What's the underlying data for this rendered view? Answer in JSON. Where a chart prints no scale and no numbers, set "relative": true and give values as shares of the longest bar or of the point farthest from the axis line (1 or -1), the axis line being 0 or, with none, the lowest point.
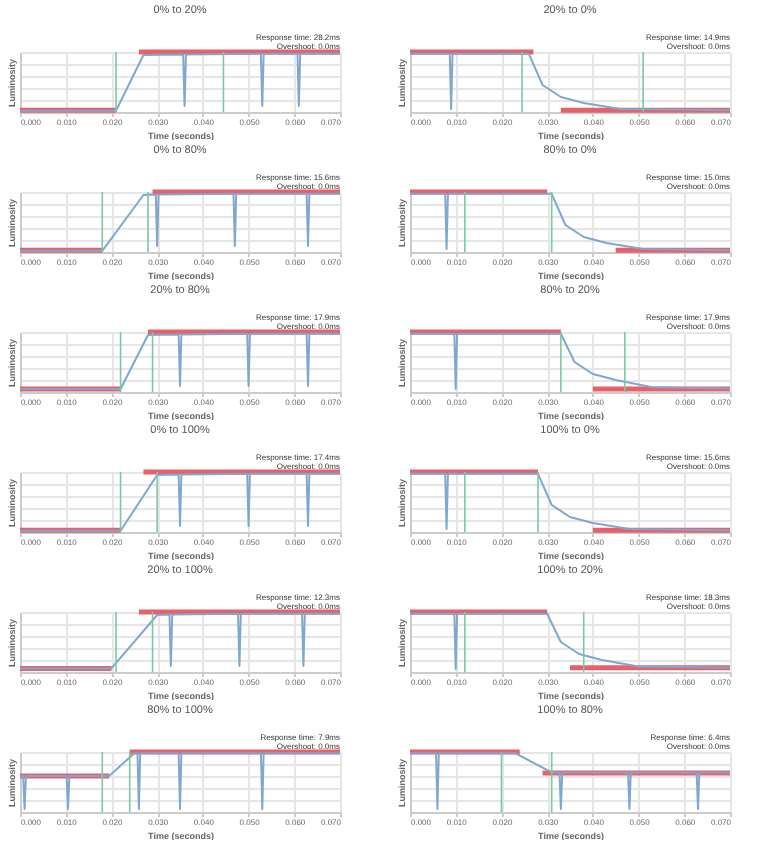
{
  "chart_data": [
    {
      "type": "line",
      "title": "0% to 20%",
      "xlabel": "Time (seconds)",
      "ylabel": "Luminosity",
      "annotations": [
        "Response time: 28.2ms",
        "Overshoot: 0.0ms"
      ],
      "relative": true,
      "grid": true,
      "xlim": [
        0,
        0.07
      ],
      "xticks": [
        {
          "value": 0,
          "label": "0.000"
        },
        {
          "value": 0.01,
          "label": "0.010"
        },
        {
          "value": 0.02,
          "label": "0.020"
        },
        {
          "value": 0.03,
          "label": "0.030"
        },
        {
          "value": 0.04,
          "label": "0.040"
        },
        {
          "value": 0.05,
          "label": "0.050"
        },
        {
          "value": 0.06,
          "label": "0.060"
        },
        {
          "value": 0.07,
          "label": "0.070"
        }
      ],
      "ref_lines": [
        {
          "axis": "x",
          "value": 0.021,
          "color": "#7cc8a0"
        },
        {
          "axis": "x",
          "value": 0.0445,
          "color": "#7cc8a0"
        }
      ],
      "series": [
        {
          "color": "#7fa7cf",
          "x": [
            0,
            0.021,
            0.027,
            0.0357,
            0.036,
            0.0363,
            0.0527,
            0.053,
            0.0533,
            0.0607,
            0.061,
            0.0613,
            0.07
          ],
          "values": [
            0.02,
            0.02,
            0.95,
            0.96,
            0.1,
            0.96,
            0.97,
            0.1,
            0.97,
            0.97,
            0.1,
            0.97,
            0.97
          ]
        },
        {
          "color": "#e8606a",
          "x": [
            0,
            0.021
          ],
          "values": [
            0.03,
            0.03
          ]
        },
        {
          "color": "#e8606a",
          "x": [
            0.026,
            0.07
          ],
          "values": [
            1,
            1
          ]
        }
      ]
    },
    {
      "type": "line",
      "title": "20% to 0%",
      "xlabel": "Time (seconds)",
      "ylabel": "Luminosity",
      "annotations": [
        "Response time: 14.9ms",
        "Overshoot: 0.0ms"
      ],
      "relative": true,
      "grid": true,
      "xlim": [
        0,
        0.07
      ],
      "xticks": [
        {
          "value": 0,
          "label": "0.000"
        },
        {
          "value": 0.01,
          "label": "0.010"
        },
        {
          "value": 0.02,
          "label": "0.020"
        },
        {
          "value": 0.03,
          "label": "0.030"
        },
        {
          "value": 0.04,
          "label": "0.040"
        },
        {
          "value": 0.05,
          "label": "0.050"
        },
        {
          "value": 0.06,
          "label": "0.060"
        },
        {
          "value": 0.07,
          "label": "0.070"
        }
      ],
      "ref_lines": [
        {
          "axis": "x",
          "value": 0.0245,
          "color": "#7cc8a0"
        },
        {
          "axis": "x",
          "value": 0.051,
          "color": "#7cc8a0"
        }
      ],
      "series": [
        {
          "color": "#7fa7cf",
          "x": [
            0,
            0.0087,
            0.009,
            0.0093,
            0.026,
            0.029,
            0.033,
            0.038,
            0.046,
            0.07
          ],
          "values": [
            0.97,
            0.97,
            0.05,
            0.97,
            0.97,
            0.45,
            0.25,
            0.15,
            0.05,
            0.03
          ]
        },
        {
          "color": "#e8606a",
          "x": [
            0,
            0.027
          ],
          "values": [
            1,
            1
          ]
        },
        {
          "color": "#e8606a",
          "x": [
            0.033,
            0.07
          ],
          "values": [
            0.03,
            0.03
          ]
        }
      ]
    },
    {
      "type": "line",
      "title": "0% to 80%",
      "xlabel": "Time (seconds)",
      "ylabel": "Luminosity",
      "annotations": [
        "Response time: 15.6ms",
        "Overshoot: 0.0ms"
      ],
      "relative": true,
      "grid": true,
      "xlim": [
        0,
        0.07
      ],
      "xticks": [
        {
          "value": 0,
          "label": "0.000"
        },
        {
          "value": 0.01,
          "label": "0.010"
        },
        {
          "value": 0.02,
          "label": "0.020"
        },
        {
          "value": 0.03,
          "label": "0.030"
        },
        {
          "value": 0.04,
          "label": "0.040"
        },
        {
          "value": 0.05,
          "label": "0.050"
        },
        {
          "value": 0.06,
          "label": "0.060"
        },
        {
          "value": 0.07,
          "label": "0.070"
        }
      ],
      "ref_lines": [
        {
          "axis": "x",
          "value": 0.018,
          "color": "#7cc8a0"
        },
        {
          "axis": "x",
          "value": 0.028,
          "color": "#7cc8a0"
        }
      ],
      "series": [
        {
          "color": "#7fa7cf",
          "x": [
            0,
            0.018,
            0.027,
            0.0297,
            0.03,
            0.0303,
            0.0467,
            0.047,
            0.0473,
            0.0627,
            0.063,
            0.0633,
            0.07
          ],
          "values": [
            0.02,
            0.02,
            0.95,
            0.96,
            0.1,
            0.96,
            0.97,
            0.1,
            0.97,
            0.97,
            0.1,
            0.97,
            0.97
          ]
        },
        {
          "color": "#e8606a",
          "x": [
            0,
            0.018
          ],
          "values": [
            0.03,
            0.03
          ]
        },
        {
          "color": "#e8606a",
          "x": [
            0.029,
            0.07
          ],
          "values": [
            1,
            1
          ]
        }
      ]
    },
    {
      "type": "line",
      "title": "80% to 0%",
      "xlabel": "Time (seconds)",
      "ylabel": "Luminosity",
      "annotations": [
        "Response time: 15.0ms",
        "Overshoot: 0.0ms"
      ],
      "relative": true,
      "grid": true,
      "xlim": [
        0,
        0.07
      ],
      "xticks": [
        {
          "value": 0,
          "label": "0.000"
        },
        {
          "value": 0.01,
          "label": "0.010"
        },
        {
          "value": 0.02,
          "label": "0.020"
        },
        {
          "value": 0.03,
          "label": "0.030"
        },
        {
          "value": 0.04,
          "label": "0.040"
        },
        {
          "value": 0.05,
          "label": "0.050"
        },
        {
          "value": 0.06,
          "label": "0.060"
        },
        {
          "value": 0.07,
          "label": "0.070"
        }
      ],
      "ref_lines": [
        {
          "axis": "x",
          "value": 0.012,
          "color": "#7cc8a0"
        },
        {
          "axis": "x",
          "value": 0.031,
          "color": "#7cc8a0"
        }
      ],
      "series": [
        {
          "color": "#7fa7cf",
          "x": [
            0,
            0.0077,
            0.008,
            0.0083,
            0.031,
            0.034,
            0.038,
            0.043,
            0.051,
            0.07
          ],
          "values": [
            0.97,
            0.97,
            0.05,
            0.97,
            0.97,
            0.45,
            0.25,
            0.15,
            0.05,
            0.03
          ]
        },
        {
          "color": "#e8606a",
          "x": [
            0,
            0.03
          ],
          "values": [
            1,
            1
          ]
        },
        {
          "color": "#e8606a",
          "x": [
            0.045,
            0.07
          ],
          "values": [
            0.03,
            0.03
          ]
        }
      ]
    },
    {
      "type": "line",
      "title": "20% to 80%",
      "xlabel": "Time (seconds)",
      "ylabel": "Luminosity",
      "annotations": [
        "Response time: 17.9ms",
        "Overshoot: 0.0ms"
      ],
      "relative": true,
      "grid": true,
      "xlim": [
        0,
        0.07
      ],
      "xticks": [
        {
          "value": 0,
          "label": "0.000"
        },
        {
          "value": 0.01,
          "label": "0.010"
        },
        {
          "value": 0.02,
          "label": "0.020"
        },
        {
          "value": 0.03,
          "label": "0.030"
        },
        {
          "value": 0.04,
          "label": "0.040"
        },
        {
          "value": 0.05,
          "label": "0.050"
        },
        {
          "value": 0.06,
          "label": "0.060"
        },
        {
          "value": 0.07,
          "label": "0.070"
        }
      ],
      "ref_lines": [
        {
          "axis": "x",
          "value": 0.022,
          "color": "#7cc8a0"
        },
        {
          "axis": "x",
          "value": 0.029,
          "color": "#7cc8a0"
        }
      ],
      "series": [
        {
          "color": "#7fa7cf",
          "x": [
            0,
            0.022,
            0.028,
            0.0347,
            0.035,
            0.0353,
            0.0497,
            0.05,
            0.0503,
            0.0627,
            0.063,
            0.0633,
            0.07
          ],
          "values": [
            0.05,
            0.05,
            0.95,
            0.96,
            0.1,
            0.96,
            0.97,
            0.1,
            0.97,
            0.97,
            0.1,
            0.97,
            0.97
          ]
        },
        {
          "color": "#e8606a",
          "x": [
            0,
            0.022
          ],
          "values": [
            0.05,
            0.05
          ]
        },
        {
          "color": "#e8606a",
          "x": [
            0.028,
            0.07
          ],
          "values": [
            1,
            1
          ]
        }
      ]
    },
    {
      "type": "line",
      "title": "80% to 20%",
      "xlabel": "Time (seconds)",
      "ylabel": "Luminosity",
      "annotations": [
        "Response time: 17.9ms",
        "Overshoot: 0.0ms"
      ],
      "relative": true,
      "grid": true,
      "xlim": [
        0,
        0.07
      ],
      "xticks": [
        {
          "value": 0,
          "label": "0.000"
        },
        {
          "value": 0.01,
          "label": "0.010"
        },
        {
          "value": 0.02,
          "label": "0.020"
        },
        {
          "value": 0.03,
          "label": "0.030"
        },
        {
          "value": 0.04,
          "label": "0.040"
        },
        {
          "value": 0.05,
          "label": "0.050"
        },
        {
          "value": 0.06,
          "label": "0.060"
        },
        {
          "value": 0.07,
          "label": "0.070"
        }
      ],
      "ref_lines": [
        {
          "axis": "x",
          "value": 0.033,
          "color": "#7cc8a0"
        },
        {
          "axis": "x",
          "value": 0.047,
          "color": "#7cc8a0"
        }
      ],
      "series": [
        {
          "color": "#7fa7cf",
          "x": [
            0,
            0.0097,
            0.01,
            0.0103,
            0.033,
            0.036,
            0.04,
            0.045,
            0.053,
            0.07
          ],
          "values": [
            0.97,
            0.97,
            0.05,
            0.97,
            0.97,
            0.5,
            0.3,
            0.2,
            0.08,
            0.06
          ]
        },
        {
          "color": "#e8606a",
          "x": [
            0,
            0.033
          ],
          "values": [
            1,
            1
          ]
        },
        {
          "color": "#e8606a",
          "x": [
            0.04,
            0.07
          ],
          "values": [
            0.05,
            0.05
          ]
        }
      ]
    },
    {
      "type": "line",
      "title": "0% to 100%",
      "xlabel": "Time (seconds)",
      "ylabel": "Luminosity",
      "annotations": [
        "Response time: 17.4ms",
        "Overshoot: 0.0ms"
      ],
      "relative": true,
      "grid": true,
      "xlim": [
        0,
        0.07
      ],
      "xticks": [
        {
          "value": 0,
          "label": "0.000"
        },
        {
          "value": 0.01,
          "label": "0.010"
        },
        {
          "value": 0.02,
          "label": "0.020"
        },
        {
          "value": 0.03,
          "label": "0.030"
        },
        {
          "value": 0.04,
          "label": "0.040"
        },
        {
          "value": 0.05,
          "label": "0.050"
        },
        {
          "value": 0.06,
          "label": "0.060"
        },
        {
          "value": 0.07,
          "label": "0.070"
        }
      ],
      "ref_lines": [
        {
          "axis": "x",
          "value": 0.022,
          "color": "#7cc8a0"
        },
        {
          "axis": "x",
          "value": 0.03,
          "color": "#7cc8a0"
        }
      ],
      "series": [
        {
          "color": "#7fa7cf",
          "x": [
            0,
            0.022,
            0.03,
            0.0347,
            0.035,
            0.0353,
            0.0497,
            0.05,
            0.0503,
            0.0627,
            0.063,
            0.0633,
            0.07
          ],
          "values": [
            0.02,
            0.02,
            0.95,
            0.96,
            0.1,
            0.96,
            0.97,
            0.1,
            0.97,
            0.97,
            0.1,
            0.97,
            0.97
          ]
        },
        {
          "color": "#e8606a",
          "x": [
            0,
            0.022
          ],
          "values": [
            0.03,
            0.03
          ]
        },
        {
          "color": "#e8606a",
          "x": [
            0.027,
            0.07
          ],
          "values": [
            1,
            1
          ]
        }
      ]
    },
    {
      "type": "line",
      "title": "100% to 0%",
      "xlabel": "Time (seconds)",
      "ylabel": "Luminosity",
      "annotations": [
        "Response time: 15.6ms",
        "Overshoot: 0.0ms"
      ],
      "relative": true,
      "grid": true,
      "xlim": [
        0,
        0.07
      ],
      "xticks": [
        {
          "value": 0,
          "label": "0.000"
        },
        {
          "value": 0.01,
          "label": "0.010"
        },
        {
          "value": 0.02,
          "label": "0.020"
        },
        {
          "value": 0.03,
          "label": "0.030"
        },
        {
          "value": 0.04,
          "label": "0.040"
        },
        {
          "value": 0.05,
          "label": "0.050"
        },
        {
          "value": 0.06,
          "label": "0.060"
        },
        {
          "value": 0.07,
          "label": "0.070"
        }
      ],
      "ref_lines": [
        {
          "axis": "x",
          "value": 0.012,
          "color": "#7cc8a0"
        },
        {
          "axis": "x",
          "value": 0.028,
          "color": "#7cc8a0"
        }
      ],
      "series": [
        {
          "color": "#7fa7cf",
          "x": [
            0,
            0.0077,
            0.008,
            0.0083,
            0.028,
            0.031,
            0.035,
            0.04,
            0.048,
            0.07
          ],
          "values": [
            0.97,
            0.97,
            0.05,
            0.97,
            0.97,
            0.45,
            0.25,
            0.15,
            0.05,
            0.03
          ]
        },
        {
          "color": "#e8606a",
          "x": [
            0,
            0.028
          ],
          "values": [
            1,
            1
          ]
        },
        {
          "color": "#e8606a",
          "x": [
            0.04,
            0.07
          ],
          "values": [
            0.03,
            0.03
          ]
        }
      ]
    },
    {
      "type": "line",
      "title": "20% to 100%",
      "xlabel": "Time (seconds)",
      "ylabel": "Luminosity",
      "annotations": [
        "Response time: 12.3ms",
        "Overshoot: 0.0ms"
      ],
      "relative": true,
      "grid": true,
      "xlim": [
        0,
        0.07
      ],
      "xticks": [
        {
          "value": 0,
          "label": "0.000"
        },
        {
          "value": 0.01,
          "label": "0.010"
        },
        {
          "value": 0.02,
          "label": "0.020"
        },
        {
          "value": 0.03,
          "label": "0.030"
        },
        {
          "value": 0.04,
          "label": "0.040"
        },
        {
          "value": 0.05,
          "label": "0.050"
        },
        {
          "value": 0.06,
          "label": "0.060"
        },
        {
          "value": 0.07,
          "label": "0.070"
        }
      ],
      "ref_lines": [
        {
          "axis": "x",
          "value": 0.021,
          "color": "#7cc8a0"
        },
        {
          "axis": "x",
          "value": 0.029,
          "color": "#7cc8a0"
        }
      ],
      "series": [
        {
          "color": "#7fa7cf",
          "x": [
            0,
            0.02,
            0.03,
            0.0327,
            0.033,
            0.0333,
            0.0477,
            0.048,
            0.0483,
            0.0617,
            0.062,
            0.0623,
            0.07
          ],
          "values": [
            0.06,
            0.06,
            0.95,
            0.96,
            0.1,
            0.96,
            0.97,
            0.1,
            0.97,
            0.97,
            0.1,
            0.97,
            0.97
          ]
        },
        {
          "color": "#e8606a",
          "x": [
            0,
            0.02
          ],
          "values": [
            0.06,
            0.06
          ]
        },
        {
          "color": "#e8606a",
          "x": [
            0.026,
            0.07
          ],
          "values": [
            1,
            1
          ]
        }
      ]
    },
    {
      "type": "line",
      "title": "100% to 20%",
      "xlabel": "Time (seconds)",
      "ylabel": "Luminosity",
      "annotations": [
        "Response time: 18.3ms",
        "Overshoot: 0.0ms"
      ],
      "relative": true,
      "grid": true,
      "xlim": [
        0,
        0.07
      ],
      "xticks": [
        {
          "value": 0,
          "label": "0.000"
        },
        {
          "value": 0.01,
          "label": "0.010"
        },
        {
          "value": 0.02,
          "label": "0.020"
        },
        {
          "value": 0.03,
          "label": "0.030"
        },
        {
          "value": 0.04,
          "label": "0.040"
        },
        {
          "value": 0.05,
          "label": "0.050"
        },
        {
          "value": 0.06,
          "label": "0.060"
        },
        {
          "value": 0.07,
          "label": "0.070"
        }
      ],
      "ref_lines": [
        {
          "axis": "x",
          "value": 0.012,
          "color": "#7cc8a0"
        },
        {
          "axis": "x",
          "value": 0.038,
          "color": "#7cc8a0"
        }
      ],
      "series": [
        {
          "color": "#7fa7cf",
          "x": [
            0,
            0.0097,
            0.01,
            0.0103,
            0.03,
            0.033,
            0.037,
            0.042,
            0.05,
            0.07
          ],
          "values": [
            0.97,
            0.97,
            0.05,
            0.97,
            0.97,
            0.5,
            0.3,
            0.2,
            0.09,
            0.07
          ]
        },
        {
          "color": "#e8606a",
          "x": [
            0,
            0.03
          ],
          "values": [
            1,
            1
          ]
        },
        {
          "color": "#e8606a",
          "x": [
            0.035,
            0.07
          ],
          "values": [
            0.07,
            0.07
          ]
        }
      ]
    },
    {
      "type": "line",
      "title": "80% to 100%",
      "xlabel": "Time (seconds)",
      "ylabel": "Luminosity",
      "annotations": [
        "Response time: 7.9ms",
        "Overshoot: 0.0ms"
      ],
      "relative": true,
      "grid": true,
      "xlim": [
        0,
        0.07
      ],
      "xticks": [
        {
          "value": 0,
          "label": "0.000"
        },
        {
          "value": 0.01,
          "label": "0.010"
        },
        {
          "value": 0.02,
          "label": "0.020"
        },
        {
          "value": 0.03,
          "label": "0.030"
        },
        {
          "value": 0.04,
          "label": "0.040"
        },
        {
          "value": 0.05,
          "label": "0.050"
        },
        {
          "value": 0.06,
          "label": "0.060"
        },
        {
          "value": 0.07,
          "label": "0.070"
        }
      ],
      "ref_lines": [
        {
          "axis": "x",
          "value": 0.018,
          "color": "#7cc8a0"
        },
        {
          "axis": "x",
          "value": 0.024,
          "color": "#7cc8a0"
        }
      ],
      "series": [
        {
          "color": "#7fa7cf",
          "x": [
            0,
            0.0007,
            0.001,
            0.0013,
            0.0102,
            0.0105,
            0.0108,
            0.0195,
            0.025,
            0.0257,
            0.026,
            0.0263,
            0.0347,
            0.035,
            0.0353,
            0.0527,
            0.053,
            0.0533,
            0.07
          ],
          "values": [
            0.6,
            0.6,
            0.05,
            0.6,
            0.6,
            0.05,
            0.6,
            0.6,
            0.98,
            0.98,
            0.05,
            0.98,
            0.98,
            0.05,
            0.98,
            0.98,
            0.05,
            0.98,
            0.98
          ]
        },
        {
          "color": "#e8606a",
          "x": [
            0,
            0.0195
          ],
          "values": [
            0.6,
            0.6
          ]
        },
        {
          "color": "#e8606a",
          "x": [
            0.024,
            0.07
          ],
          "values": [
            1,
            1
          ]
        }
      ]
    },
    {
      "type": "line",
      "title": "100% to 80%",
      "xlabel": "Time (seconds)",
      "ylabel": "Luminosity",
      "annotations": [
        "Response time: 6.4ms",
        "Overshoot: 0.0ms"
      ],
      "relative": true,
      "grid": true,
      "xlim": [
        0,
        0.07
      ],
      "xticks": [
        {
          "value": 0,
          "label": "0.000"
        },
        {
          "value": 0.01,
          "label": "0.010"
        },
        {
          "value": 0.02,
          "label": "0.020"
        },
        {
          "value": 0.03,
          "label": "0.030"
        },
        {
          "value": 0.04,
          "label": "0.040"
        },
        {
          "value": 0.05,
          "label": "0.050"
        },
        {
          "value": 0.06,
          "label": "0.060"
        },
        {
          "value": 0.07,
          "label": "0.070"
        }
      ],
      "ref_lines": [
        {
          "axis": "x",
          "value": 0.02,
          "color": "#7cc8a0"
        },
        {
          "axis": "x",
          "value": 0.031,
          "color": "#7cc8a0"
        }
      ],
      "series": [
        {
          "color": "#7fa7cf",
          "x": [
            0,
            0.0057,
            0.006,
            0.0063,
            0.023,
            0.031,
            0.0327,
            0.033,
            0.0333,
            0.0477,
            0.048,
            0.0483,
            0.0627,
            0.063,
            0.0633,
            0.07
          ],
          "values": [
            0.98,
            0.98,
            0.05,
            0.98,
            0.98,
            0.66,
            0.66,
            0.05,
            0.66,
            0.66,
            0.05,
            0.66,
            0.66,
            0.05,
            0.66,
            0.66
          ]
        },
        {
          "color": "#e8606a",
          "x": [
            0,
            0.024
          ],
          "values": [
            1,
            1
          ]
        },
        {
          "color": "#e8606a",
          "x": [
            0.029,
            0.07
          ],
          "values": [
            0.65,
            0.65
          ]
        }
      ]
    }
  ]
}
